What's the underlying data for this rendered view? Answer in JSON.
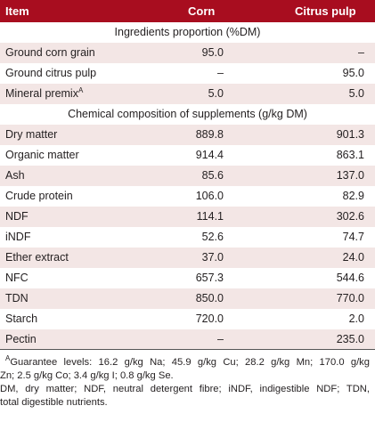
{
  "header": {
    "item": "Item",
    "corn": "Corn",
    "citrus": "Citrus pulp"
  },
  "section1": {
    "title": "Ingredients proportion (%DM)"
  },
  "ingredients": [
    {
      "label": "Ground corn grain",
      "corn": "95.0",
      "citrus": "–"
    },
    {
      "label": "Ground citrus pulp",
      "corn": "–",
      "citrus": "95.0"
    },
    {
      "label": "Mineral premix",
      "sup": "A",
      "corn": "5.0",
      "citrus": "5.0"
    }
  ],
  "section2": {
    "title": "Chemical composition of supplements (g/kg DM)"
  },
  "composition": [
    {
      "label": "Dry matter",
      "corn": "889.8",
      "citrus": "901.3"
    },
    {
      "label": "Organic matter",
      "corn": "914.4",
      "citrus": "863.1"
    },
    {
      "label": "Ash",
      "corn": "85.6",
      "citrus": "137.0"
    },
    {
      "label": "Crude protein",
      "corn": "106.0",
      "citrus": "82.9"
    },
    {
      "label": "NDF",
      "corn": "114.1",
      "citrus": "302.6"
    },
    {
      "label": "iNDF",
      "corn": "52.6",
      "citrus": "74.7"
    },
    {
      "label": "Ether extract",
      "corn": "37.0",
      "citrus": "24.0"
    },
    {
      "label": "NFC",
      "corn": "657.3",
      "citrus": "544.6"
    },
    {
      "label": "TDN",
      "corn": "850.0",
      "citrus": "770.0"
    },
    {
      "label": "Starch",
      "corn": "720.0",
      "citrus": "2.0"
    },
    {
      "label": "Pectin",
      "corn": "–",
      "citrus": "235.0"
    }
  ],
  "footnotes": {
    "a_sup": "A",
    "a_line1": "Guarantee levels: 16.2 g/kg Na; 45.9 g/kg Cu; 28.2 g/kg Mn; 170.0 g/kg",
    "a_line2": "Zn; 2.5 g/kg Co; 3.4 g/kg I; 0.8 g/kg Se.",
    "abbr_line1": "DM, dry matter; NDF, neutral detergent fibre; iNDF, indigestible NDF; TDN,",
    "abbr_line2": "total digestible nutrients."
  },
  "colors": {
    "header_bg": "#a80d1f",
    "shade_bg": "#f3e6e5",
    "text": "#231f20"
  }
}
